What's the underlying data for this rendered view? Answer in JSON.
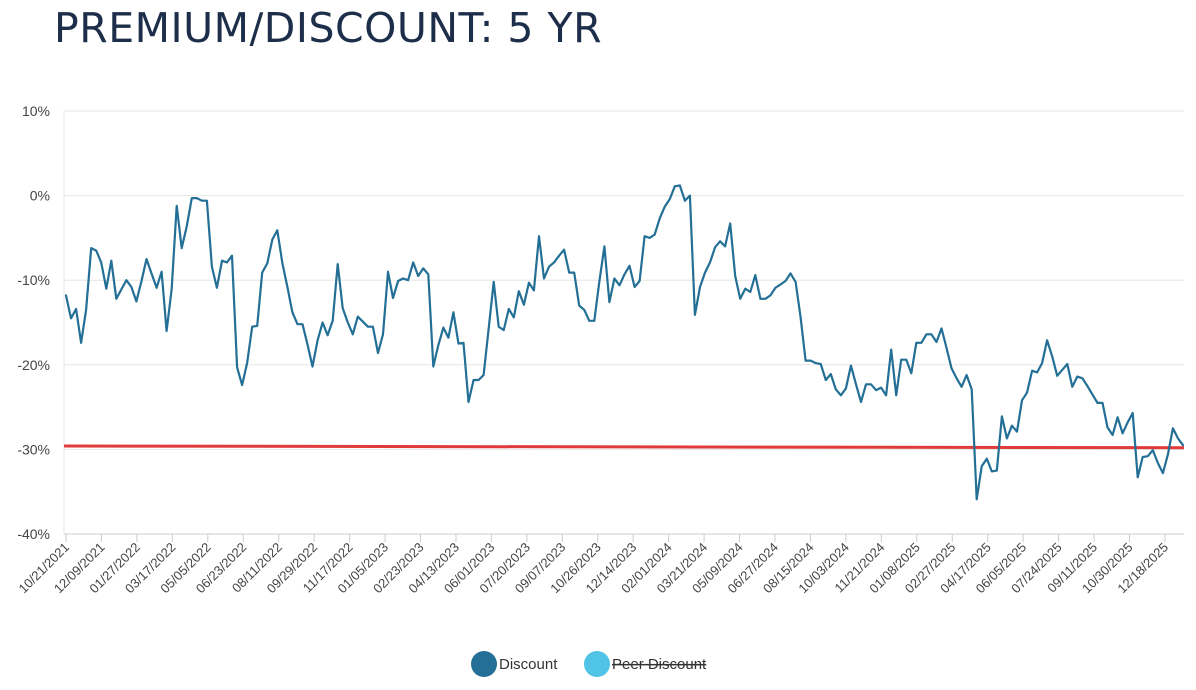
{
  "chart_data": {
    "type": "line",
    "title": "PREMIUM/DISCOUNT: 5 YR",
    "ylim": [
      -40,
      10
    ],
    "yticks": [
      10,
      0,
      -10,
      -20,
      -30,
      -40
    ],
    "ytick_labels": [
      "10%",
      "0%",
      "-10%",
      "-20%",
      "-30%",
      "-40%"
    ],
    "x_tick_labels": [
      "10/21/2021",
      "12/09/2021",
      "01/27/2022",
      "03/17/2022",
      "05/05/2022",
      "06/23/2022",
      "08/11/2022",
      "09/29/2022",
      "11/17/2022",
      "01/05/2023",
      "02/23/2023",
      "04/13/2023",
      "06/01/2023",
      "07/20/2023",
      "09/07/2023",
      "10/26/2023",
      "12/14/2023",
      "02/01/2024",
      "03/21/2024",
      "05/09/2024",
      "06/27/2024",
      "08/15/2024",
      "10/03/2024",
      "11/21/2024",
      "01/08/2025",
      "02/27/2025",
      "04/17/2025",
      "06/05/2025",
      "07/24/2025",
      "09/11/2025",
      "10/30/2025",
      "12/18/2025"
    ],
    "grid": true,
    "legend_position": "bottom-center",
    "series": [
      {
        "name": "Discount",
        "color": "#236f95",
        "values": [
          -11.8,
          -14.5,
          -13.4,
          -17.4,
          -13.5,
          -6.2,
          -6.5,
          -7.9,
          -11.0,
          -7.7,
          -12.2,
          -11.1,
          -10.0,
          -10.8,
          -12.5,
          -10.1,
          -7.5,
          -9.2,
          -10.9,
          -9.0,
          -16.0,
          -11.0,
          -1.2,
          -6.2,
          -3.6,
          -0.3,
          -0.3,
          -0.6,
          -0.6,
          -8.4,
          -10.9,
          -7.7,
          -7.9,
          -7.1,
          -20.3,
          -22.4,
          -19.8,
          -15.5,
          -15.4,
          -9.1,
          -8.0,
          -5.2,
          -4.1,
          -8.0,
          -10.8,
          -13.8,
          -15.2,
          -15.2,
          -17.6,
          -20.2,
          -17.1,
          -15.0,
          -16.5,
          -14.8,
          -8.1,
          -13.3,
          -15.0,
          -16.4,
          -14.3,
          -14.9,
          -15.5,
          -15.5,
          -18.6,
          -16.4,
          -9.0,
          -12.1,
          -10.1,
          -9.8,
          -10.0,
          -7.9,
          -9.5,
          -8.6,
          -9.3,
          -20.2,
          -17.7,
          -15.6,
          -16.8,
          -13.8,
          -17.5,
          -17.4,
          -24.4,
          -21.8,
          -21.8,
          -21.2,
          -15.8,
          -10.2,
          -15.5,
          -15.9,
          -13.4,
          -14.4,
          -11.3,
          -12.9,
          -10.3,
          -11.2,
          -4.8,
          -9.8,
          -8.4,
          -7.9,
          -7.1,
          -6.4,
          -9.1,
          -9.1,
          -13.0,
          -13.5,
          -14.8,
          -14.8,
          -10.2,
          -6.0,
          -12.6,
          -9.8,
          -10.6,
          -9.3,
          -8.3,
          -10.8,
          -10.1,
          -4.8,
          -5.0,
          -4.6,
          -2.7,
          -1.3,
          -0.4,
          1.1,
          1.2,
          -0.6,
          0.0,
          -14.1,
          -10.8,
          -9.1,
          -7.9,
          -6.1,
          -5.4,
          -6.0,
          -3.3,
          -9.5,
          -12.2,
          -11.0,
          -11.4,
          -9.4,
          -12.2,
          -12.2,
          -11.8,
          -10.9,
          -10.5,
          -10.1,
          -9.2,
          -10.2,
          -14.4,
          -19.5,
          -19.5,
          -19.8,
          -19.9,
          -21.8,
          -21.1,
          -22.9,
          -23.6,
          -22.8,
          -20.1,
          -22.3,
          -24.4,
          -22.3,
          -22.3,
          -23.0,
          -22.7,
          -23.6,
          -18.2,
          -23.6,
          -19.4,
          -19.4,
          -21.0,
          -17.4,
          -17.4,
          -16.4,
          -16.4,
          -17.3,
          -15.7,
          -18.0,
          -20.4,
          -21.6,
          -22.6,
          -21.2,
          -22.9,
          -35.9,
          -32.0,
          -31.1,
          -32.6,
          -32.5,
          -26.1,
          -28.7,
          -27.2,
          -27.9,
          -24.2,
          -23.3,
          -20.7,
          -20.9,
          -19.8,
          -17.1,
          -19.0,
          -21.3,
          -20.6,
          -19.9,
          -22.6,
          -21.4,
          -21.6,
          -22.5,
          -23.5,
          -24.5,
          -24.5,
          -27.4,
          -28.3,
          -26.2,
          -28.1,
          -26.8,
          -25.7,
          -33.3,
          -30.9,
          -30.8,
          -30.1,
          -31.6,
          -32.8,
          -30.6,
          -27.5,
          -28.7,
          -29.5
        ]
      },
      {
        "name": "Peer Discount",
        "color": "#4fc4e6",
        "legend_disabled": true,
        "values": []
      }
    ],
    "reference_lines": [
      {
        "color": "#e03a3a",
        "start": -29.6,
        "end": -29.8
      }
    ]
  }
}
